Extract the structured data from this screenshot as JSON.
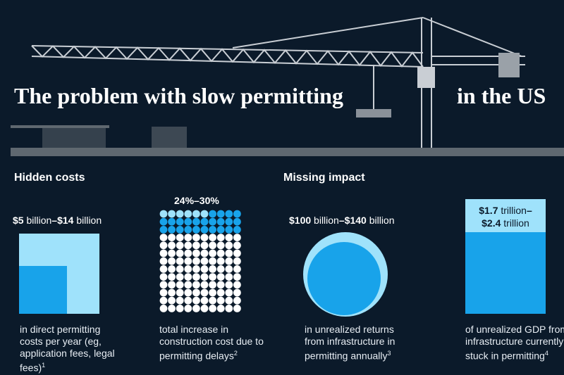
{
  "title_left": "The problem with slow permitting",
  "title_right": "in the US",
  "sections": {
    "hidden_costs": "Hidden costs",
    "missing_impact": "Missing impact"
  },
  "colors": {
    "background": "#0b1a2a",
    "light_blue": "#9fe2fb",
    "blue": "#18a3ea",
    "white": "#ffffff"
  },
  "items": [
    {
      "value_low": "$5",
      "unit_low": "billion",
      "sep": "–",
      "value_high": "$14",
      "unit_high": "billion",
      "desc": "in direct permitting costs per year (eg, application fees, legal fees)",
      "note": "1"
    },
    {
      "value": "24%–30%",
      "desc": "total increase in construction cost due to permitting delays",
      "note": "2",
      "dots_low_pct": 24,
      "dots_high_pct": 30
    },
    {
      "value_low": "$100",
      "unit_low": "billion",
      "sep": "–",
      "value_high": "$140",
      "unit_high": "billion",
      "desc": "in unrealized returns from infrastructure in permitting annually",
      "note": "3"
    },
    {
      "value_low": "$1.7",
      "unit_low": "trillion",
      "sep": "–",
      "value_high": "$2.4",
      "unit_high": "trillion",
      "desc": "of unrealized GDP from infrastructure currently stuck in permitting",
      "note": "4"
    }
  ]
}
